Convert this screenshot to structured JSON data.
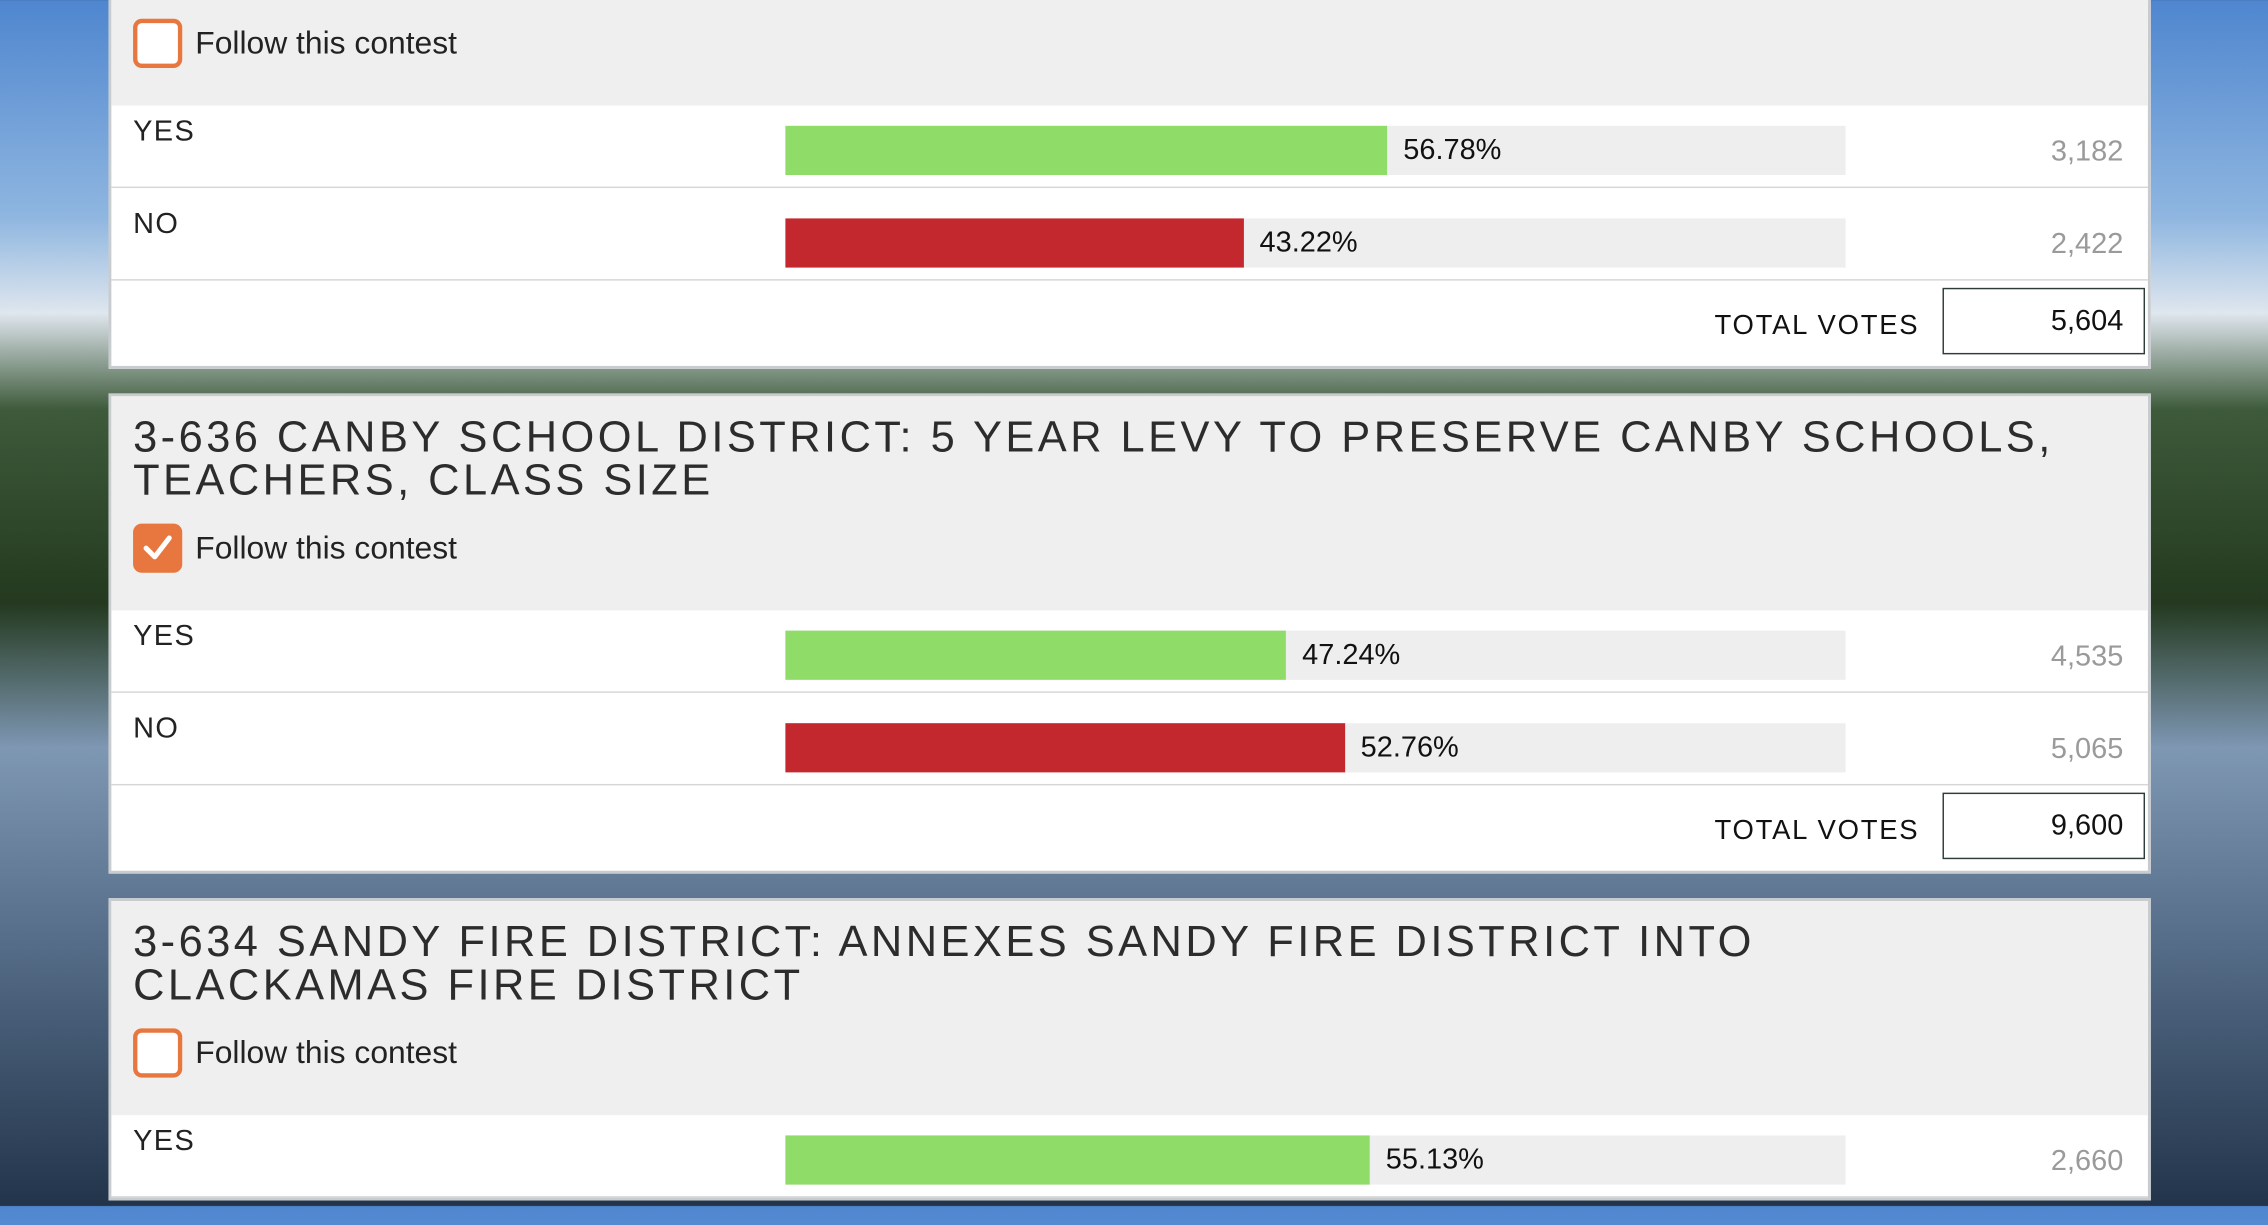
{
  "contests": [
    {
      "follow": "Follow this contest",
      "checked": false,
      "choices": [
        {
          "label": "YES",
          "percent": {
            "value": 56.78,
            "label": "56.78%"
          },
          "votes": "3,182"
        },
        {
          "label": "NO",
          "percent": {
            "value": 43.22,
            "label": "43.22%"
          },
          "votes": "2,422"
        }
      ],
      "total_label": "TOTAL VOTES",
      "total": "5,604"
    },
    {
      "title": "3-636 CANBY SCHOOL DISTRICT: 5 YEAR LEVY TO PRESERVE CANBY SCHOOLS, TEACHERS, CLASS SIZE",
      "follow": "Follow this contest",
      "checked": true,
      "choices": [
        {
          "label": "YES",
          "percent": {
            "value": 47.24,
            "label": "47.24%"
          },
          "votes": "4,535"
        },
        {
          "label": "NO",
          "percent": {
            "value": 52.76,
            "label": "52.76%"
          },
          "votes": "5,065"
        }
      ],
      "total_label": "TOTAL VOTES",
      "total": "9,600"
    },
    {
      "title": "3-634 SANDY FIRE DISTRICT: ANNEXES SANDY FIRE DISTRICT INTO CLACKAMAS FIRE DISTRICT",
      "follow": "Follow this contest",
      "checked": false,
      "choices": [
        {
          "label": "YES",
          "percent": {
            "value": 55.13,
            "label": "55.13%"
          },
          "votes": "2,660"
        }
      ]
    }
  ]
}
